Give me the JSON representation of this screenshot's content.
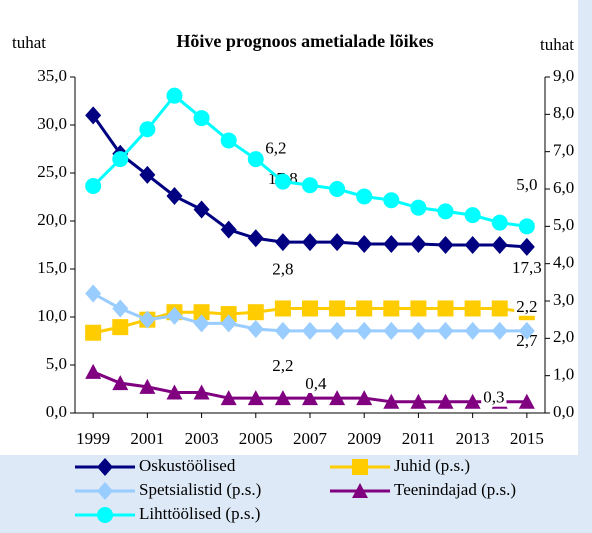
{
  "chart_data": {
    "type": "line",
    "title": "Hõive prognoos ametialade lõikes",
    "ylabel": "tuhat",
    "y2label": "tuhat",
    "x": [
      1999,
      2000,
      2001,
      2002,
      2003,
      2004,
      2005,
      2006,
      2007,
      2008,
      2009,
      2010,
      2011,
      2012,
      2013,
      2014,
      2015
    ],
    "xlim": [
      1998.33,
      2015.67
    ],
    "xticks": [
      1999,
      2001,
      2003,
      2005,
      2007,
      2009,
      2011,
      2013,
      2015
    ],
    "ylim": [
      0,
      35
    ],
    "yticks": [
      {
        "value": 0,
        "label": "0,0"
      },
      {
        "value": 5,
        "label": "5,0"
      },
      {
        "value": 10,
        "label": "10,0"
      },
      {
        "value": 15,
        "label": "15,0"
      },
      {
        "value": 20,
        "label": "20,0"
      },
      {
        "value": 25,
        "label": "25,0"
      },
      {
        "value": 30,
        "label": "30,0"
      },
      {
        "value": 35,
        "label": "35,0"
      }
    ],
    "y2lim": [
      0,
      9
    ],
    "y2ticks": [
      {
        "value": 0,
        "label": "0,0"
      },
      {
        "value": 1,
        "label": "1,0"
      },
      {
        "value": 2,
        "label": "2,0"
      },
      {
        "value": 3,
        "label": "3,0"
      },
      {
        "value": 4,
        "label": "4,0"
      },
      {
        "value": 5,
        "label": "5,0"
      },
      {
        "value": 6,
        "label": "6,0"
      },
      {
        "value": 7,
        "label": "7,0"
      },
      {
        "value": 8,
        "label": "8,0"
      },
      {
        "value": 9,
        "label": "9,0"
      }
    ],
    "grid": false,
    "series": [
      {
        "name": "Oskustöölised",
        "color": "#000080",
        "marker": "diamond",
        "axis": "y",
        "values": [
          31.0,
          27.0,
          24.8,
          22.6,
          21.2,
          19.1,
          18.2,
          17.8,
          17.8,
          17.8,
          17.6,
          17.6,
          17.6,
          17.5,
          17.5,
          17.5,
          17.3
        ],
        "value_labels": [
          null,
          null,
          null,
          null,
          null,
          null,
          null,
          "17,8",
          null,
          null,
          null,
          null,
          null,
          null,
          null,
          null,
          "17,3"
        ]
      },
      {
        "name": "Juhid (p.s.)",
        "color": "#ffcc00",
        "marker": "square",
        "axis": "y2",
        "values": [
          2.15,
          2.3,
          2.5,
          2.7,
          2.7,
          2.65,
          2.7,
          2.8,
          2.8,
          2.8,
          2.8,
          2.8,
          2.8,
          2.8,
          2.8,
          2.8,
          2.7
        ],
        "value_labels": [
          null,
          null,
          null,
          null,
          null,
          null,
          null,
          "2,8",
          null,
          null,
          null,
          null,
          null,
          null,
          null,
          null,
          "2,7"
        ]
      },
      {
        "name": "Spetsialistid (p.s.)",
        "color": "#99ccff",
        "marker": "diamond",
        "axis": "y2",
        "values": [
          3.2,
          2.8,
          2.5,
          2.6,
          2.4,
          2.4,
          2.25,
          2.2,
          2.2,
          2.2,
          2.2,
          2.2,
          2.2,
          2.2,
          2.2,
          2.2,
          2.2
        ],
        "value_labels": [
          null,
          null,
          null,
          null,
          null,
          null,
          null,
          "2,2",
          null,
          null,
          null,
          null,
          null,
          null,
          null,
          null,
          "2,2"
        ]
      },
      {
        "name": "Teenindajad (p.s.)",
        "color": "#800080",
        "marker": "triangle",
        "axis": "y2",
        "values": [
          1.1,
          0.8,
          0.7,
          0.55,
          0.55,
          0.4,
          0.4,
          0.4,
          0.4,
          0.4,
          0.4,
          0.3,
          0.3,
          0.3,
          0.3,
          0.3,
          0.3
        ],
        "value_labels": [
          null,
          null,
          null,
          null,
          null,
          null,
          null,
          "0,4",
          null,
          null,
          null,
          null,
          null,
          null,
          null,
          null,
          "0,3"
        ]
      },
      {
        "name": "Lihttöölised (p.s.)",
        "color": "#00ffff",
        "marker": "circle",
        "axis": "y2",
        "values": [
          6.08,
          6.8,
          7.6,
          8.5,
          7.9,
          7.3,
          6.8,
          6.2,
          6.1,
          6.0,
          5.8,
          5.7,
          5.5,
          5.4,
          5.3,
          5.1,
          5.0
        ],
        "value_labels": [
          null,
          null,
          null,
          null,
          null,
          null,
          null,
          "6,2",
          null,
          null,
          null,
          null,
          null,
          null,
          null,
          null,
          "5,0"
        ]
      }
    ]
  }
}
